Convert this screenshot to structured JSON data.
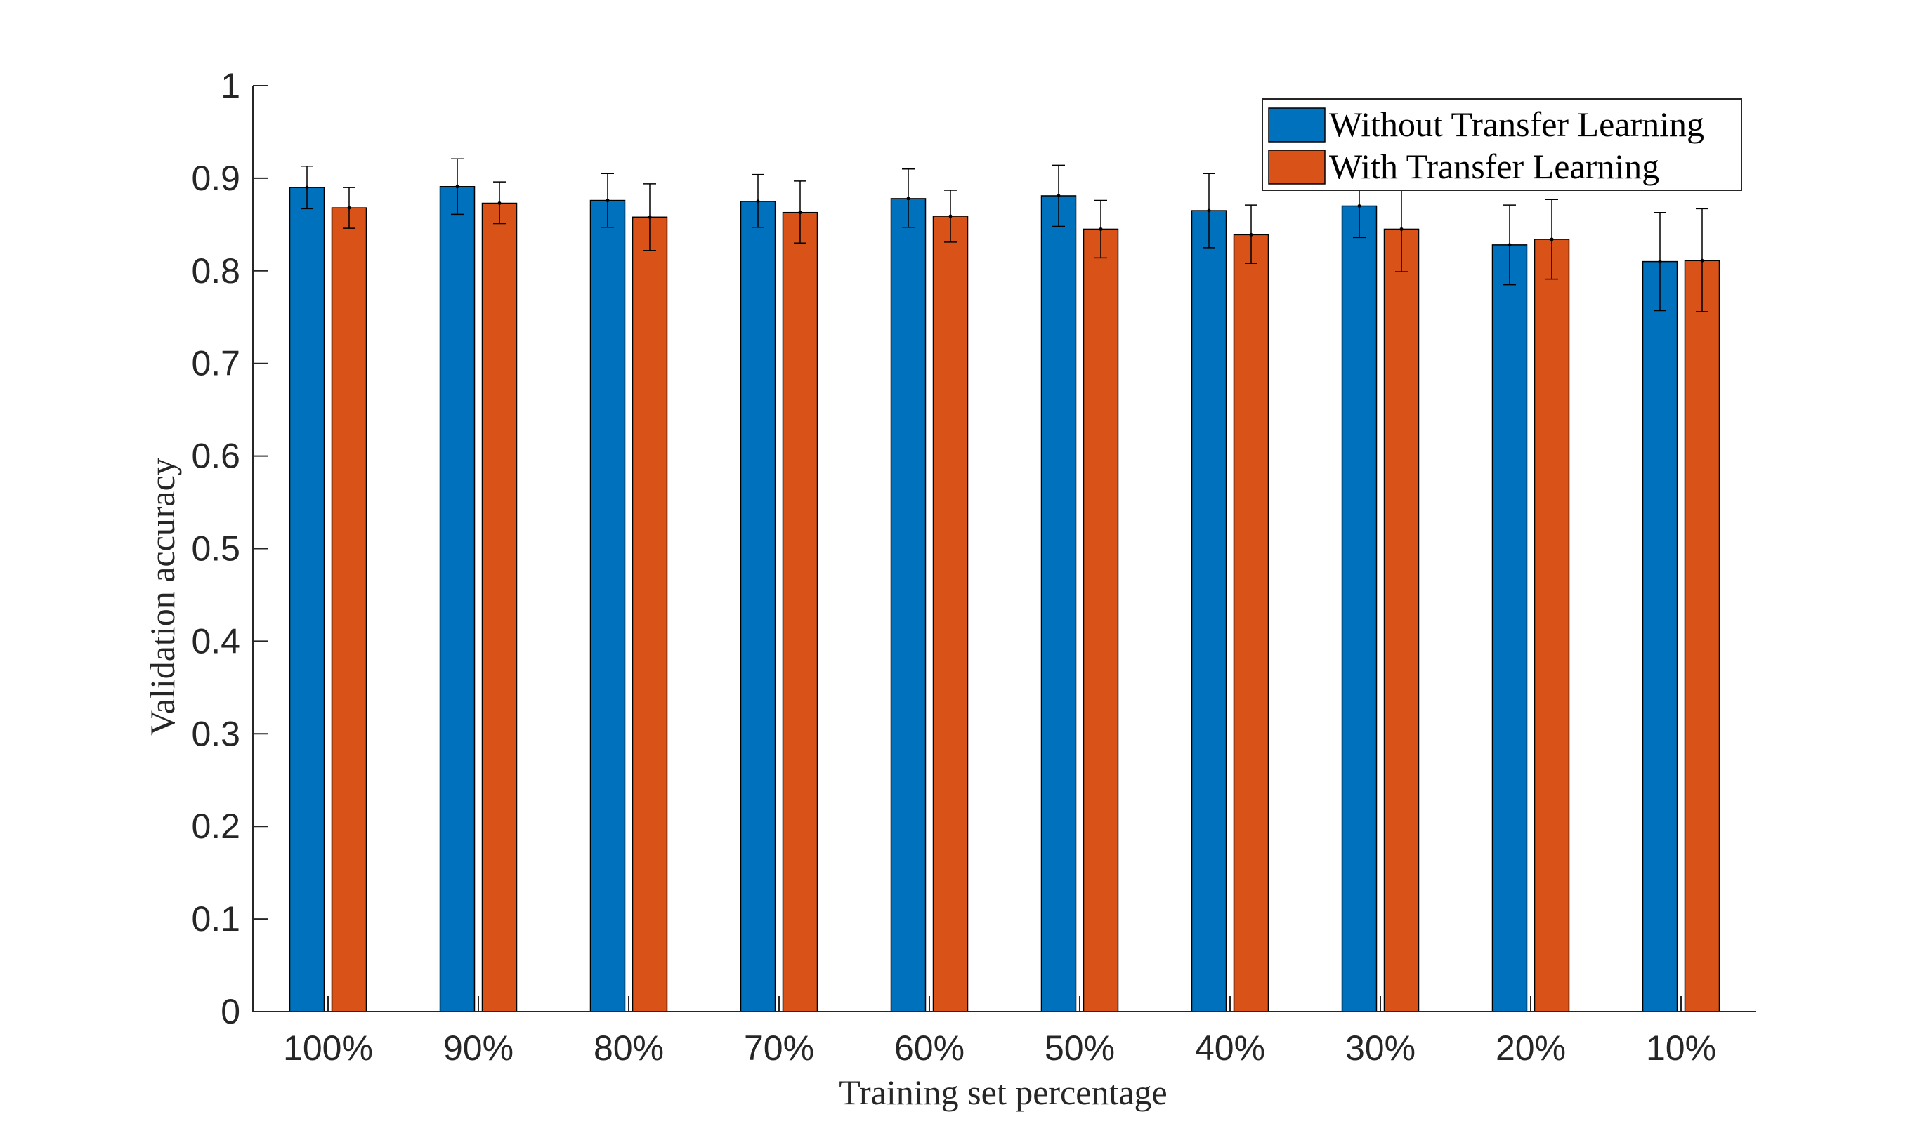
{
  "chart_data": {
    "type": "bar",
    "categories": [
      "100%",
      "90%",
      "80%",
      "70%",
      "60%",
      "50%",
      "40%",
      "30%",
      "20%",
      "10%"
    ],
    "series": [
      {
        "name": "Without Transfer Learning",
        "color": "#0072BD",
        "values": [
          0.89,
          0.891,
          0.876,
          0.875,
          0.878,
          0.881,
          0.865,
          0.87,
          0.828,
          0.81
        ],
        "err_low": [
          0.867,
          0.861,
          0.847,
          0.847,
          0.847,
          0.848,
          0.825,
          0.836,
          0.785,
          0.757
        ],
        "err_high": [
          0.913,
          0.921,
          0.905,
          0.904,
          0.91,
          0.914,
          0.905,
          0.9,
          0.871,
          0.863
        ]
      },
      {
        "name": "With Transfer Learning",
        "color": "#D95319",
        "values": [
          0.868,
          0.873,
          0.858,
          0.863,
          0.859,
          0.845,
          0.839,
          0.845,
          0.834,
          0.811
        ],
        "err_low": [
          0.846,
          0.851,
          0.822,
          0.83,
          0.831,
          0.814,
          0.808,
          0.799,
          0.791,
          0.756
        ],
        "err_high": [
          0.89,
          0.896,
          0.894,
          0.897,
          0.887,
          0.876,
          0.871,
          0.887,
          0.877,
          0.867
        ]
      }
    ],
    "xlabel": "Training set percentage",
    "ylabel": "Validation accuracy",
    "ylim": [
      0,
      1
    ],
    "yticks": [
      0,
      0.1,
      0.2,
      0.3,
      0.4,
      0.5,
      0.6,
      0.7,
      0.8,
      0.9,
      1
    ],
    "ytick_labels": [
      "0",
      "0.1",
      "0.2",
      "0.3",
      "0.4",
      "0.5",
      "0.6",
      "0.7",
      "0.8",
      "0.9",
      "1"
    ],
    "legend_position": "top-right",
    "grid": false,
    "axis_color": "#262626"
  }
}
